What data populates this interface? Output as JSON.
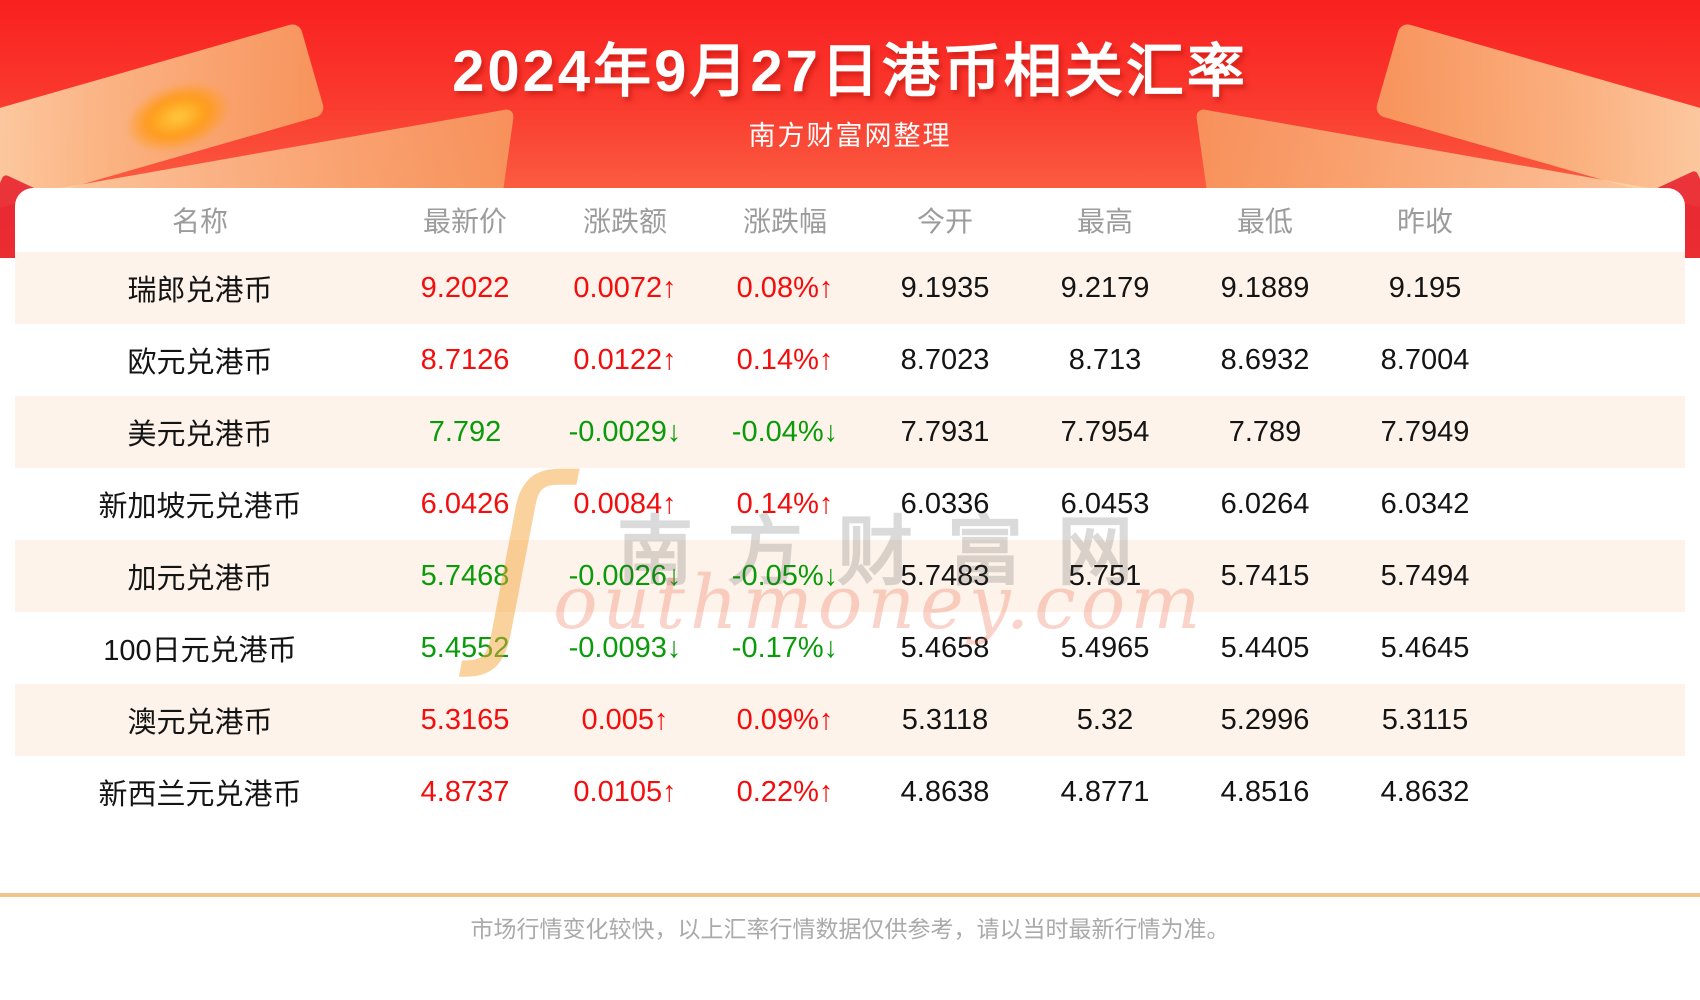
{
  "header": {
    "title": "2024年9月27日港币相关汇率",
    "subtitle": "南方财富网整理"
  },
  "watermark": {
    "swoosh": "ʃ",
    "cn": "南方财富网",
    "domain": "outhmoney.com"
  },
  "footer": {
    "note": "市场行情变化较快，以上汇率行情数据仅供参考，请以当时最新行情为准。"
  },
  "colors": {
    "up": "#f50d0d",
    "down": "#0a9b0a",
    "banner_red": "#f92020",
    "divider": "#f2c38b",
    "row_alt_bg": "#fdf3ea"
  },
  "chart_data": {
    "type": "table",
    "title": "2024年9月27日港币相关汇率",
    "columns": [
      "名称",
      "最新价",
      "涨跌额",
      "涨跌幅",
      "今开",
      "最高",
      "最低",
      "昨收"
    ],
    "rows": [
      {
        "name": "瑞郎兑港币",
        "latest": "9.2022",
        "change": "0.0072↑",
        "change_pct": "0.08%↑",
        "open": "9.1935",
        "high": "9.2179",
        "low": "9.1889",
        "prev_close": "9.195",
        "direction": "up"
      },
      {
        "name": "欧元兑港币",
        "latest": "8.7126",
        "change": "0.0122↑",
        "change_pct": "0.14%↑",
        "open": "8.7023",
        "high": "8.713",
        "low": "8.6932",
        "prev_close": "8.7004",
        "direction": "up"
      },
      {
        "name": "美元兑港币",
        "latest": "7.792",
        "change": "-0.0029↓",
        "change_pct": "-0.04%↓",
        "open": "7.7931",
        "high": "7.7954",
        "low": "7.789",
        "prev_close": "7.7949",
        "direction": "down"
      },
      {
        "name": "新加坡元兑港币",
        "latest": "6.0426",
        "change": "0.0084↑",
        "change_pct": "0.14%↑",
        "open": "6.0336",
        "high": "6.0453",
        "low": "6.0264",
        "prev_close": "6.0342",
        "direction": "up"
      },
      {
        "name": "加元兑港币",
        "latest": "5.7468",
        "change": "-0.0026↓",
        "change_pct": "-0.05%↓",
        "open": "5.7483",
        "high": "5.751",
        "low": "5.7415",
        "prev_close": "5.7494",
        "direction": "down"
      },
      {
        "name": "100日元兑港币",
        "latest": "5.4552",
        "change": "-0.0093↓",
        "change_pct": "-0.17%↓",
        "open": "5.4658",
        "high": "5.4965",
        "low": "5.4405",
        "prev_close": "5.4645",
        "direction": "down"
      },
      {
        "name": "澳元兑港币",
        "latest": "5.3165",
        "change": "0.005↑",
        "change_pct": "0.09%↑",
        "open": "5.3118",
        "high": "5.32",
        "low": "5.2996",
        "prev_close": "5.3115",
        "direction": "up"
      },
      {
        "name": "新西兰元兑港币",
        "latest": "4.8737",
        "change": "0.0105↑",
        "change_pct": "0.22%↑",
        "open": "4.8638",
        "high": "4.8771",
        "low": "4.8516",
        "prev_close": "4.8632",
        "direction": "up"
      }
    ]
  }
}
